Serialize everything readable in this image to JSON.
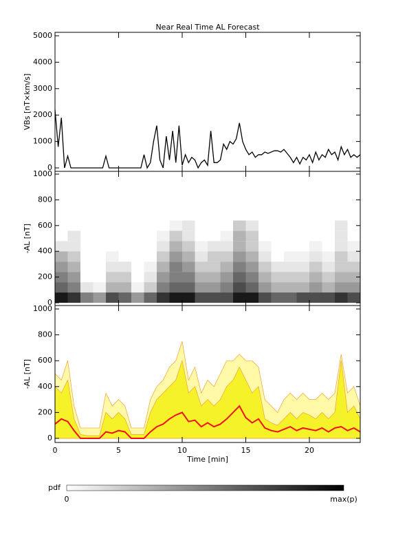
{
  "chart_data": [
    {
      "type": "line",
      "title": "Near Real Time AL Forecast",
      "ylabel": "VBs [nT×km/s]",
      "color": "#000000",
      "xlim": [
        0,
        24
      ],
      "xticks": [
        0,
        5,
        10,
        15,
        20
      ],
      "ylim": [
        0,
        5000
      ],
      "yticks": [
        0,
        1000,
        2000,
        3000,
        4000,
        5000
      ],
      "x": [
        0,
        0.25,
        0.5,
        0.75,
        1,
        1.25,
        1.5,
        1.75,
        2,
        2.25,
        2.5,
        2.75,
        3,
        3.25,
        3.5,
        3.75,
        4,
        4.25,
        4.5,
        4.75,
        5,
        5.25,
        5.5,
        5.75,
        6,
        6.25,
        6.5,
        6.75,
        7,
        7.25,
        7.5,
        7.75,
        8,
        8.25,
        8.5,
        8.75,
        9,
        9.25,
        9.5,
        9.75,
        10,
        10.25,
        10.5,
        10.75,
        11,
        11.25,
        11.5,
        11.75,
        12,
        12.25,
        12.5,
        12.75,
        13,
        13.25,
        13.5,
        13.75,
        14,
        14.25,
        14.5,
        14.75,
        15,
        15.25,
        15.5,
        15.75,
        16,
        16.25,
        16.5,
        16.75,
        17,
        17.25,
        17.5,
        17.75,
        18,
        18.25,
        18.5,
        18.75,
        19,
        19.25,
        19.5,
        19.75,
        20,
        20.25,
        20.5,
        20.75,
        21,
        21.25,
        21.5,
        21.75,
        22,
        22.25,
        22.5,
        22.75,
        23,
        23.25,
        23.5,
        23.75,
        24
      ],
      "values": [
        2200,
        800,
        1900,
        0,
        450,
        0,
        0,
        0,
        0,
        0,
        0,
        0,
        0,
        0,
        0,
        0,
        450,
        0,
        0,
        0,
        0,
        0,
        0,
        0,
        0,
        0,
        0,
        0,
        500,
        0,
        200,
        1000,
        1600,
        300,
        0,
        1200,
        300,
        1400,
        200,
        1600,
        100,
        500,
        200,
        400,
        300,
        0,
        200,
        300,
        100,
        1400,
        200,
        200,
        300,
        900,
        700,
        1000,
        900,
        1100,
        1700,
        1000,
        700,
        500,
        600,
        400,
        500,
        500,
        600,
        550,
        600,
        650,
        650,
        600,
        700,
        550,
        400,
        200,
        400,
        150,
        400,
        300,
        500,
        200,
        600,
        300,
        500,
        400,
        700,
        500,
        600,
        300,
        800,
        500,
        700,
        400,
        500,
        400,
        500
      ]
    },
    {
      "type": "heatmap",
      "ylabel": "-AL [nT]",
      "colorbar_label": "pdf",
      "colorbar_ticks": [
        "0",
        "max(p)"
      ],
      "xlim": [
        0,
        24
      ],
      "xticks": [
        0,
        5,
        10,
        15,
        20
      ],
      "ylim": [
        0,
        1000
      ],
      "yticks": [
        0,
        200,
        400,
        600,
        800,
        1000
      ],
      "x_bins": [
        0,
        1,
        2,
        3,
        4,
        5,
        6,
        7,
        8,
        9,
        10,
        11,
        12,
        13,
        14,
        15,
        16,
        17,
        18,
        19,
        20,
        21,
        22,
        23,
        24
      ],
      "y_bins": [
        0,
        80,
        160,
        240,
        320,
        400,
        480,
        560,
        640,
        720,
        800
      ],
      "pdf": [
        [
          0.9,
          0.6,
          0.5,
          0.4,
          0.3,
          0.1,
          0,
          0,
          0,
          0
        ],
        [
          0.8,
          0.5,
          0.4,
          0.3,
          0.2,
          0.1,
          0.1,
          0,
          0,
          0
        ],
        [
          0.5,
          0.1,
          0,
          0,
          0,
          0,
          0,
          0,
          0,
          0
        ],
        [
          0.4,
          0.05,
          0,
          0,
          0,
          0,
          0,
          0,
          0,
          0
        ],
        [
          0.7,
          0.3,
          0.2,
          0.1,
          0.05,
          0,
          0,
          0,
          0,
          0
        ],
        [
          0.6,
          0.3,
          0.2,
          0.1,
          0,
          0,
          0,
          0,
          0,
          0
        ],
        [
          0.4,
          0.05,
          0,
          0,
          0,
          0,
          0,
          0,
          0,
          0
        ],
        [
          0.6,
          0.2,
          0.1,
          0.05,
          0,
          0,
          0,
          0,
          0,
          0
        ],
        [
          0.8,
          0.5,
          0.4,
          0.3,
          0.2,
          0.1,
          0.05,
          0,
          0,
          0
        ],
        [
          0.9,
          0.6,
          0.5,
          0.5,
          0.4,
          0.3,
          0.2,
          0.05,
          0,
          0
        ],
        [
          0.9,
          0.6,
          0.5,
          0.4,
          0.3,
          0.2,
          0.1,
          0.1,
          0,
          0
        ],
        [
          0.7,
          0.4,
          0.3,
          0.2,
          0.1,
          0.05,
          0,
          0,
          0,
          0
        ],
        [
          0.7,
          0.4,
          0.3,
          0.2,
          0.2,
          0.1,
          0,
          0,
          0,
          0
        ],
        [
          0.7,
          0.5,
          0.4,
          0.3,
          0.2,
          0.1,
          0.05,
          0,
          0,
          0
        ],
        [
          0.9,
          0.7,
          0.6,
          0.5,
          0.4,
          0.3,
          0.3,
          0.2,
          0,
          0
        ],
        [
          0.9,
          0.6,
          0.5,
          0.4,
          0.3,
          0.2,
          0.2,
          0.1,
          0,
          0
        ],
        [
          0.7,
          0.4,
          0.3,
          0.2,
          0.1,
          0.05,
          0,
          0,
          0,
          0
        ],
        [
          0.6,
          0.3,
          0.2,
          0.1,
          0,
          0,
          0,
          0,
          0,
          0
        ],
        [
          0.6,
          0.3,
          0.2,
          0.1,
          0.05,
          0,
          0,
          0,
          0,
          0
        ],
        [
          0.7,
          0.3,
          0.2,
          0.1,
          0.05,
          0,
          0,
          0,
          0,
          0
        ],
        [
          0.7,
          0.4,
          0.3,
          0.2,
          0.1,
          0.05,
          0,
          0,
          0,
          0
        ],
        [
          0.7,
          0.3,
          0.2,
          0.1,
          0.05,
          0,
          0,
          0,
          0,
          0
        ],
        [
          0.8,
          0.4,
          0.3,
          0.2,
          0.2,
          0.1,
          0.1,
          0.1,
          0,
          0
        ],
        [
          0.7,
          0.4,
          0.3,
          0.2,
          0.1,
          0.05,
          0,
          0,
          0,
          0
        ]
      ]
    },
    {
      "type": "area",
      "ylabel": "-AL [nT]",
      "xlabel": "Time [min]",
      "xlim": [
        0,
        24
      ],
      "xticks": [
        0,
        5,
        10,
        15,
        20
      ],
      "ylim": [
        0,
        1000
      ],
      "yticks": [
        0,
        200,
        400,
        600,
        800,
        1000
      ],
      "x": [
        0,
        0.5,
        1,
        1.5,
        2,
        2.5,
        3,
        3.5,
        4,
        4.5,
        5,
        5.5,
        6,
        6.5,
        7,
        7.5,
        8,
        8.5,
        9,
        9.5,
        10,
        10.5,
        11,
        11.5,
        12,
        12.5,
        13,
        13.5,
        14,
        14.5,
        15,
        15.5,
        16,
        16.5,
        17,
        17.5,
        18,
        18.5,
        19,
        19.5,
        20,
        20.5,
        21,
        21.5,
        22,
        22.5,
        23,
        23.5,
        24
      ],
      "series": [
        {
          "style": "area",
          "color": "#fff9a8",
          "values": [
            500,
            450,
            600,
            250,
            80,
            80,
            80,
            80,
            350,
            250,
            300,
            250,
            80,
            80,
            80,
            300,
            400,
            450,
            550,
            600,
            750,
            450,
            550,
            350,
            450,
            400,
            500,
            600,
            600,
            650,
            600,
            600,
            550,
            300,
            250,
            200,
            300,
            350,
            300,
            350,
            300,
            300,
            350,
            300,
            350,
            650,
            350,
            400,
            250
          ]
        },
        {
          "style": "area",
          "color": "#f6f22a",
          "values": [
            400,
            350,
            450,
            150,
            30,
            20,
            20,
            20,
            200,
            150,
            200,
            150,
            30,
            30,
            30,
            200,
            300,
            350,
            400,
            450,
            600,
            350,
            400,
            250,
            300,
            250,
            300,
            400,
            450,
            550,
            450,
            350,
            400,
            150,
            120,
            100,
            150,
            200,
            150,
            200,
            180,
            150,
            200,
            150,
            200,
            600,
            200,
            250,
            150
          ]
        },
        {
          "style": "line",
          "color": "#ee1111",
          "values": [
            110,
            150,
            130,
            60,
            0,
            0,
            0,
            0,
            50,
            40,
            60,
            50,
            0,
            0,
            0,
            50,
            90,
            110,
            150,
            180,
            200,
            130,
            140,
            90,
            120,
            90,
            110,
            150,
            200,
            250,
            160,
            120,
            150,
            80,
            60,
            50,
            70,
            90,
            60,
            80,
            70,
            60,
            80,
            50,
            80,
            90,
            60,
            80,
            50
          ]
        }
      ]
    }
  ]
}
